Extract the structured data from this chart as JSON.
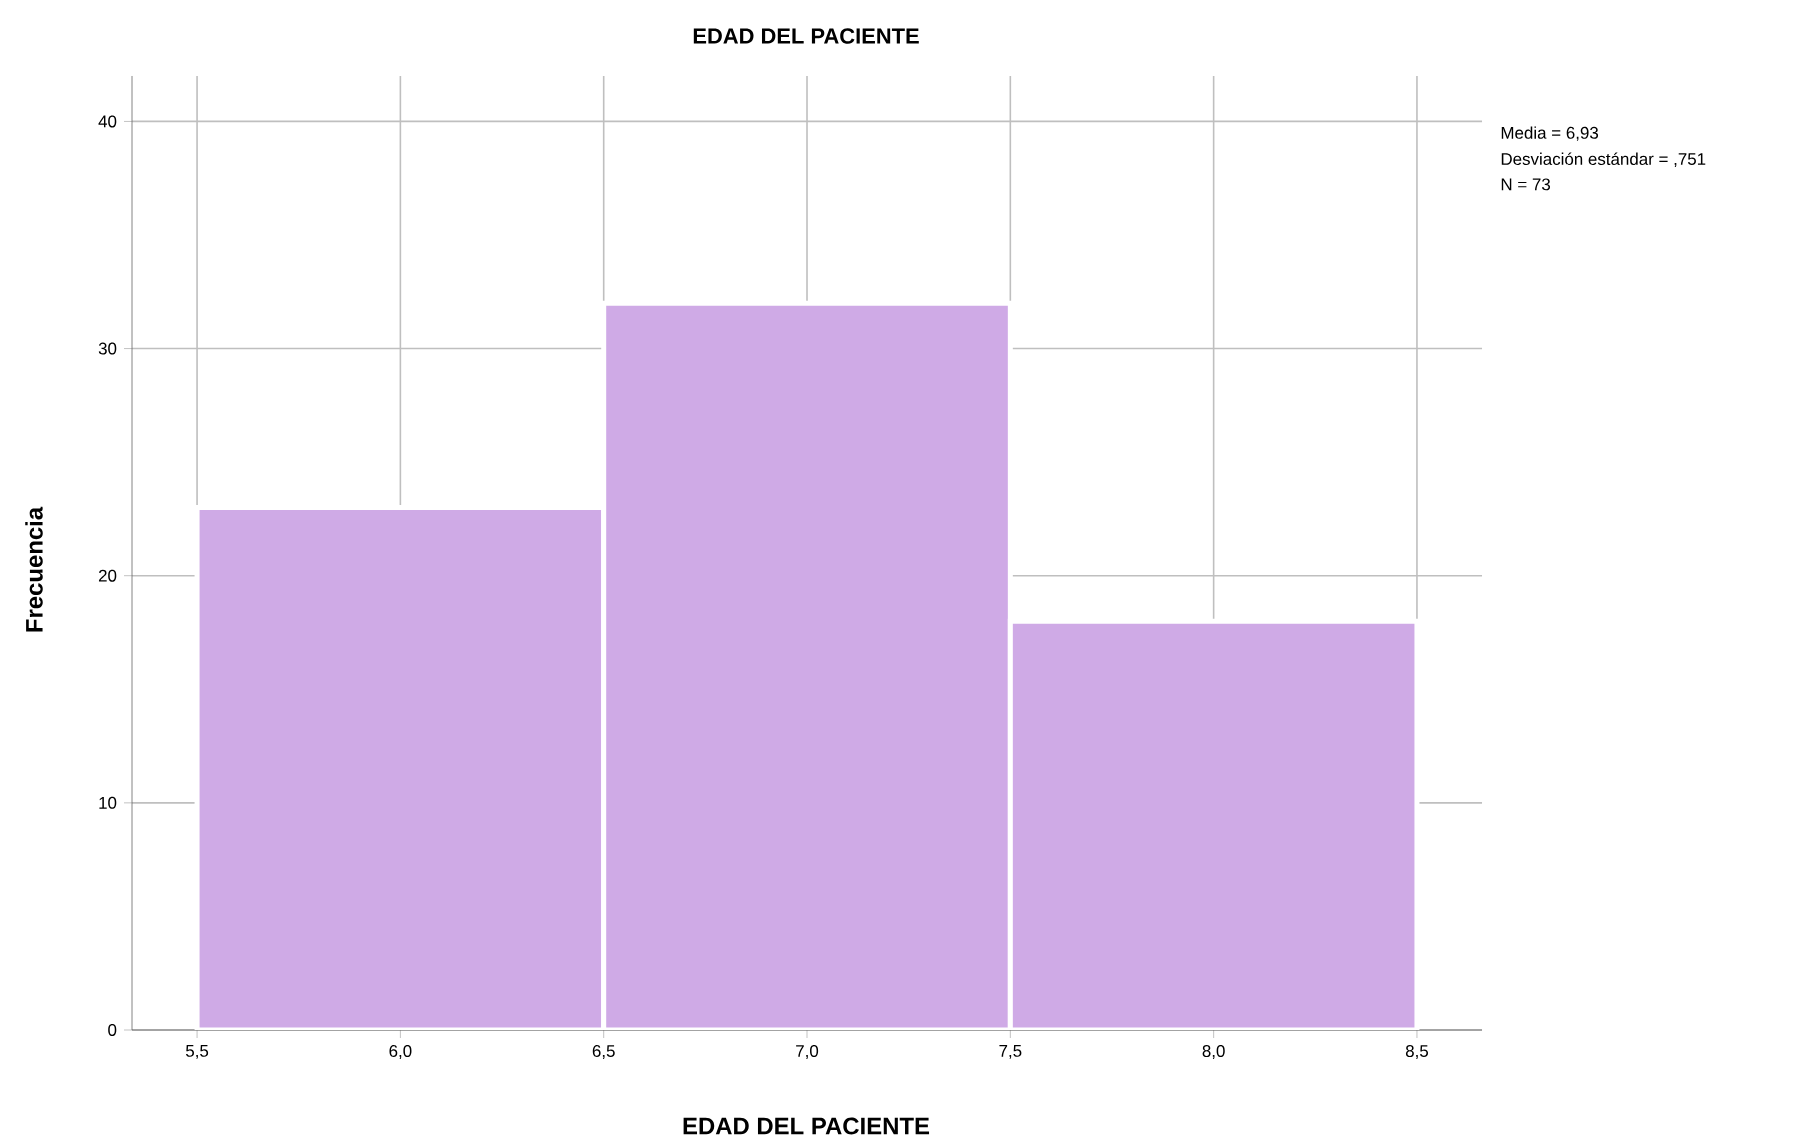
{
  "chart_data": {
    "type": "histogram",
    "title": "EDAD DEL PACIENTE",
    "xlabel": "EDAD DEL PACIENTE",
    "ylabel": "Frecuencia",
    "bins": [
      5.5,
      6.5,
      7.5,
      8.5
    ],
    "values": [
      23,
      32,
      18
    ],
    "color": "#cfaae6",
    "xlim": [
      5.34,
      8.66
    ],
    "ylim": [
      0,
      42
    ],
    "xticks": [
      {
        "value": 5.5,
        "label": "5,5"
      },
      {
        "value": 6.0,
        "label": "6,0"
      },
      {
        "value": 6.5,
        "label": "6,5"
      },
      {
        "value": 7.0,
        "label": "7,0"
      },
      {
        "value": 7.5,
        "label": "7,5"
      },
      {
        "value": 8.0,
        "label": "8,0"
      },
      {
        "value": 8.5,
        "label": "8,5"
      }
    ],
    "yticks": [
      0,
      10,
      20,
      30,
      40
    ],
    "grid": true,
    "annotations": [
      "Media = 6,93",
      "Desviación estándar = ,751",
      "N = 73"
    ]
  }
}
